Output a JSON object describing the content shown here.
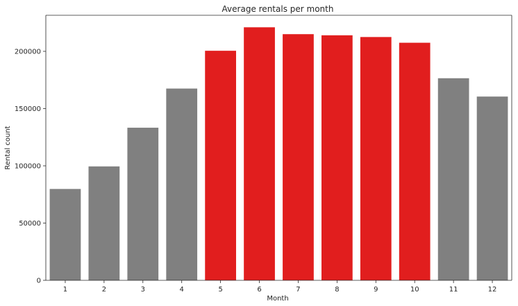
{
  "chart_data": {
    "type": "bar",
    "title": "Average rentals per month",
    "xlabel": "Month",
    "ylabel": "Rental count",
    "categories": [
      "1",
      "2",
      "3",
      "4",
      "5",
      "6",
      "7",
      "8",
      "9",
      "10",
      "11",
      "12"
    ],
    "values": [
      79800,
      99500,
      133300,
      167500,
      200500,
      221000,
      215000,
      214000,
      212500,
      207500,
      176500,
      160500
    ],
    "highlighted": [
      false,
      false,
      false,
      false,
      true,
      true,
      true,
      true,
      true,
      true,
      false,
      false
    ],
    "colors": {
      "default": "#808080",
      "highlight": "#e11e1e"
    },
    "ylim": [
      0,
      231500
    ],
    "yticks": [
      0,
      50000,
      100000,
      150000,
      200000
    ],
    "ytick_labels": [
      "0",
      "50000",
      "100000",
      "150000",
      "200000"
    ],
    "grid": false,
    "legend": "none"
  }
}
